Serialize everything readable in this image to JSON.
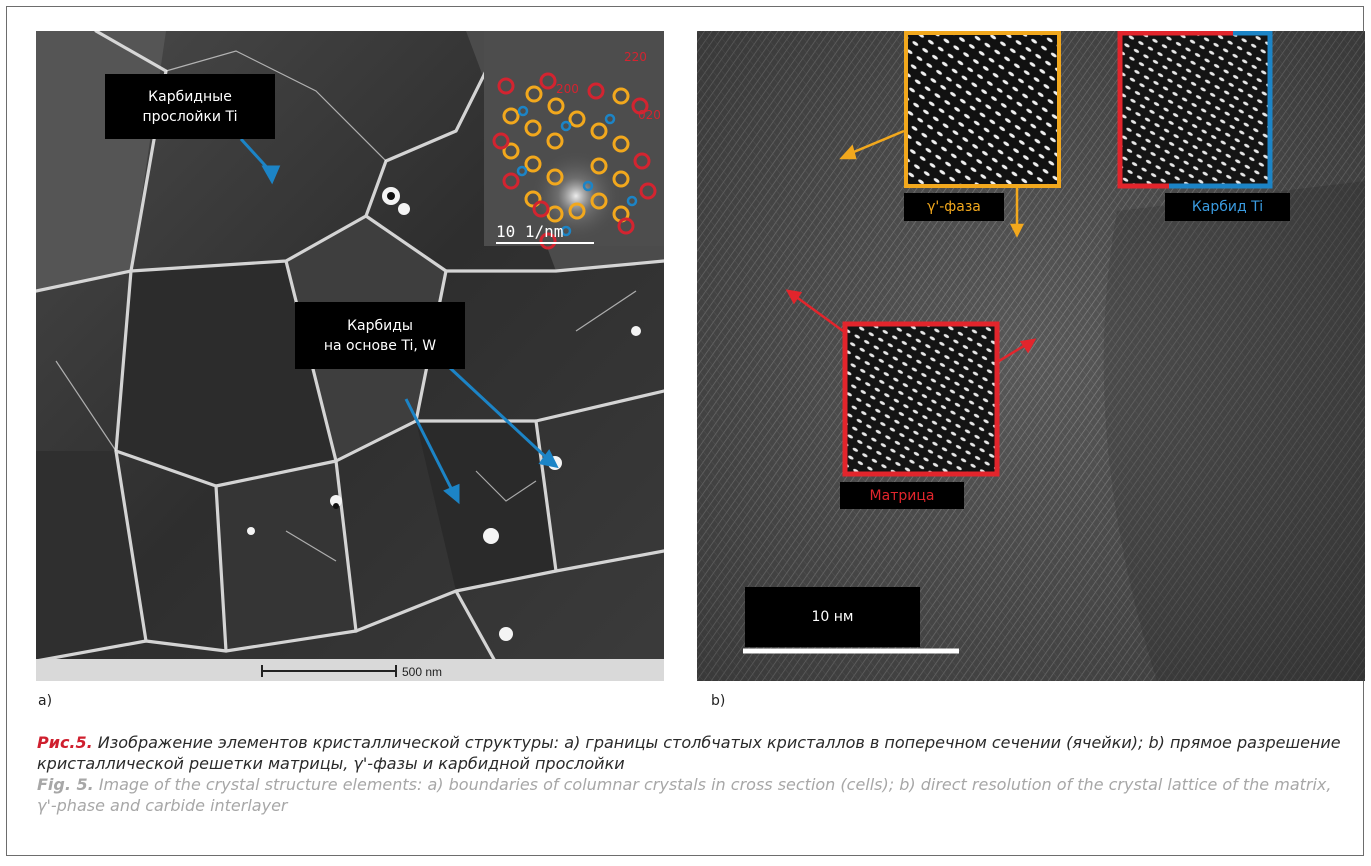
{
  "panel_a": {
    "label_carbide_layers_line1": "Карбидные",
    "label_carbide_layers_line2": "прослойки Ti",
    "label_carbides_line1": "Карбиды",
    "label_carbides_line2": "на основе Ti, W",
    "diffraction": {
      "idx_200": "200",
      "idx_220": "220",
      "idx_020": "020",
      "scale_label": "10 1/nm"
    },
    "scale_bar_label": "500 nm",
    "letter": "a)"
  },
  "panel_b": {
    "label_gamma": "γ'-фаза",
    "label_carbide": "Карбид Ti",
    "label_matrix": "Матрица",
    "scale_label": "10 нм",
    "letter": "b)"
  },
  "colors": {
    "orange": "#f2a81d",
    "red": "#e2252c",
    "blue": "#1c84c6",
    "caption_lead": "#cf1f2e",
    "caption_en": "#a7a7a7"
  },
  "caption": {
    "ru_lead": "Рис.5.",
    "ru_text": " Изображение элементов кристаллической структуры: a) границы столбчатых кристаллов в поперечном сечении (ячейки); b) прямое разрешение кристаллической решетки матрицы, γ'-фазы и карбидной прослойки",
    "en_lead": "Fig. 5.",
    "en_text": " Image of the crystal structure elements: a) boundaries of columnar crystals in cross section (cells); b) direct resolution of the crystal lattice of the matrix, γ'-phase and carbide interlayer"
  }
}
